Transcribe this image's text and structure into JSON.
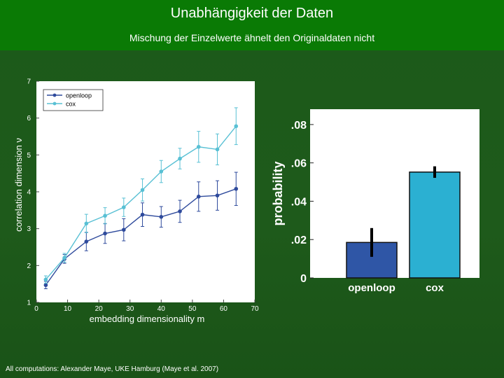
{
  "slide": {
    "title": "Unabhängigkeit der Daten",
    "subtitle": "Mischung der Einzelwerte ähnelt den Originaldaten nicht",
    "footer": "All computations: Alexander Maye, UKE Hamburg (Maye et al. 2007)"
  },
  "colors": {
    "header": "#0a7a05",
    "background": "#1c5a1a",
    "openloop": "#2e4a9c",
    "cox": "#58c0d4",
    "openloop_bar": "#2f56a6",
    "cox_bar": "#2bb0d2"
  },
  "chart_data": [
    {
      "type": "line",
      "xlabel": "embedding dimensionality m",
      "ylabel": "correlation dimension ν",
      "xlim": [
        0,
        70
      ],
      "ylim": [
        1,
        7
      ],
      "xticks": [
        0,
        10,
        20,
        30,
        40,
        50,
        60,
        70
      ],
      "yticks": [
        1,
        2,
        3,
        4,
        5,
        6,
        7
      ],
      "x": [
        3,
        9,
        16,
        22,
        28,
        34,
        40,
        46,
        52,
        58,
        64
      ],
      "legend_position": "top-left",
      "grid": false,
      "series": [
        {
          "name": "openloop",
          "values": [
            1.47,
            2.18,
            2.65,
            2.87,
            2.97,
            3.38,
            3.32,
            3.47,
            3.87,
            3.9,
            4.08
          ],
          "errors": [
            0.1,
            0.12,
            0.25,
            0.27,
            0.3,
            0.32,
            0.28,
            0.3,
            0.4,
            0.4,
            0.45
          ]
        },
        {
          "name": "cox",
          "values": [
            1.62,
            2.21,
            3.14,
            3.35,
            3.58,
            4.05,
            4.55,
            4.9,
            5.22,
            5.15,
            5.78
          ],
          "errors": [
            0.1,
            0.12,
            0.25,
            0.22,
            0.25,
            0.3,
            0.3,
            0.28,
            0.42,
            0.42,
            0.5
          ]
        }
      ]
    },
    {
      "type": "bar",
      "ylabel": "probability",
      "ylim": [
        0,
        0.088
      ],
      "yticks": [
        ".08",
        ".06",
        ".04",
        ".02",
        "0"
      ],
      "ytick_values": [
        0.08,
        0.06,
        0.04,
        0.02,
        0
      ],
      "categories": [
        "openloop",
        "cox"
      ],
      "values": [
        0.0185,
        0.0552
      ],
      "errors": [
        0.0075,
        0.003
      ],
      "grid": false
    }
  ]
}
